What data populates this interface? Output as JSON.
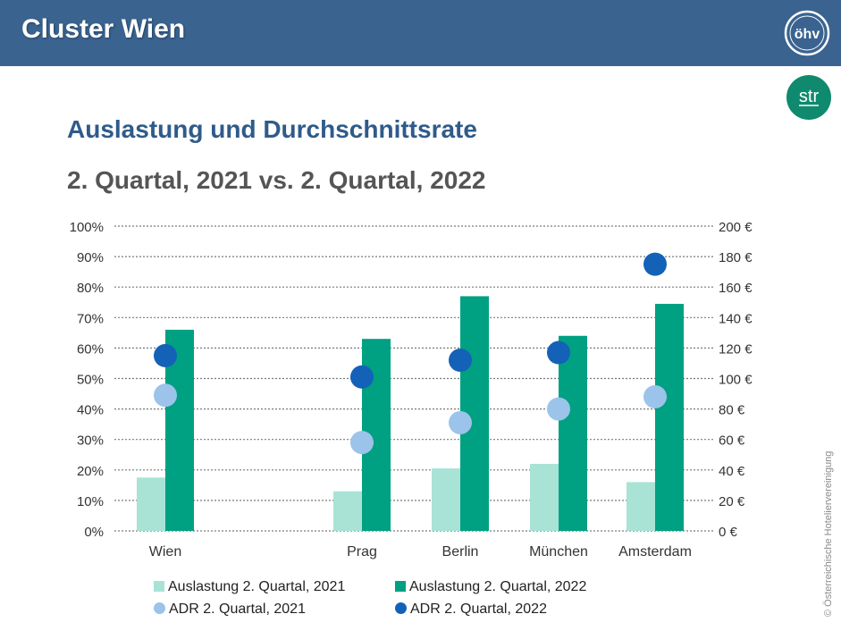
{
  "header": {
    "title": "Cluster Wien"
  },
  "logos": {
    "ohv_text": "öhv",
    "str_text": "str"
  },
  "subtitle": "Auslastung und Durchschnittsrate",
  "subtitle2": "2. Quartal, 2021 vs. 2. Quartal, 2022",
  "copyright": "© Österreichische Hoteliervereinigung",
  "colors": {
    "header_bg": "#3a6390",
    "occ_2021": "#a8e3d6",
    "occ_2022": "#00a082",
    "adr_2021": "#9cc3ea",
    "adr_2022": "#1461b8",
    "str_logo": "#0f8a6e"
  },
  "chart_data": {
    "type": "bar",
    "categories": [
      "Wien",
      "",
      "Prag",
      "Berlin",
      "München",
      "Amsterdam"
    ],
    "y_left": {
      "ticks": [
        "0%",
        "10%",
        "20%",
        "30%",
        "40%",
        "50%",
        "60%",
        "70%",
        "80%",
        "90%",
        "100%"
      ],
      "ylim": [
        0,
        100
      ]
    },
    "y_right": {
      "ticks": [
        "0 €",
        "20 €",
        "40 €",
        "60 €",
        "80 €",
        "100 €",
        "120 €",
        "140 €",
        "160 €",
        "180 €",
        "200 €"
      ],
      "ylim": [
        0,
        200
      ]
    },
    "grid": true,
    "legend_position": "bottom",
    "series": [
      {
        "name": "Auslastung 2. Quartal, 2021",
        "kind": "bar",
        "axis": "left",
        "values": [
          17.5,
          null,
          13,
          20.5,
          22,
          16
        ]
      },
      {
        "name": "Auslastung 2. Quartal, 2022",
        "kind": "bar",
        "axis": "left",
        "values": [
          66,
          null,
          63,
          77,
          64,
          74.5
        ]
      },
      {
        "name": "ADR 2. Quartal, 2021",
        "kind": "dot",
        "axis": "right",
        "values": [
          89,
          null,
          58,
          71,
          80,
          88
        ]
      },
      {
        "name": "ADR 2. Quartal, 2022",
        "kind": "dot",
        "axis": "right",
        "values": [
          115,
          null,
          101,
          112,
          117,
          175
        ]
      }
    ]
  }
}
